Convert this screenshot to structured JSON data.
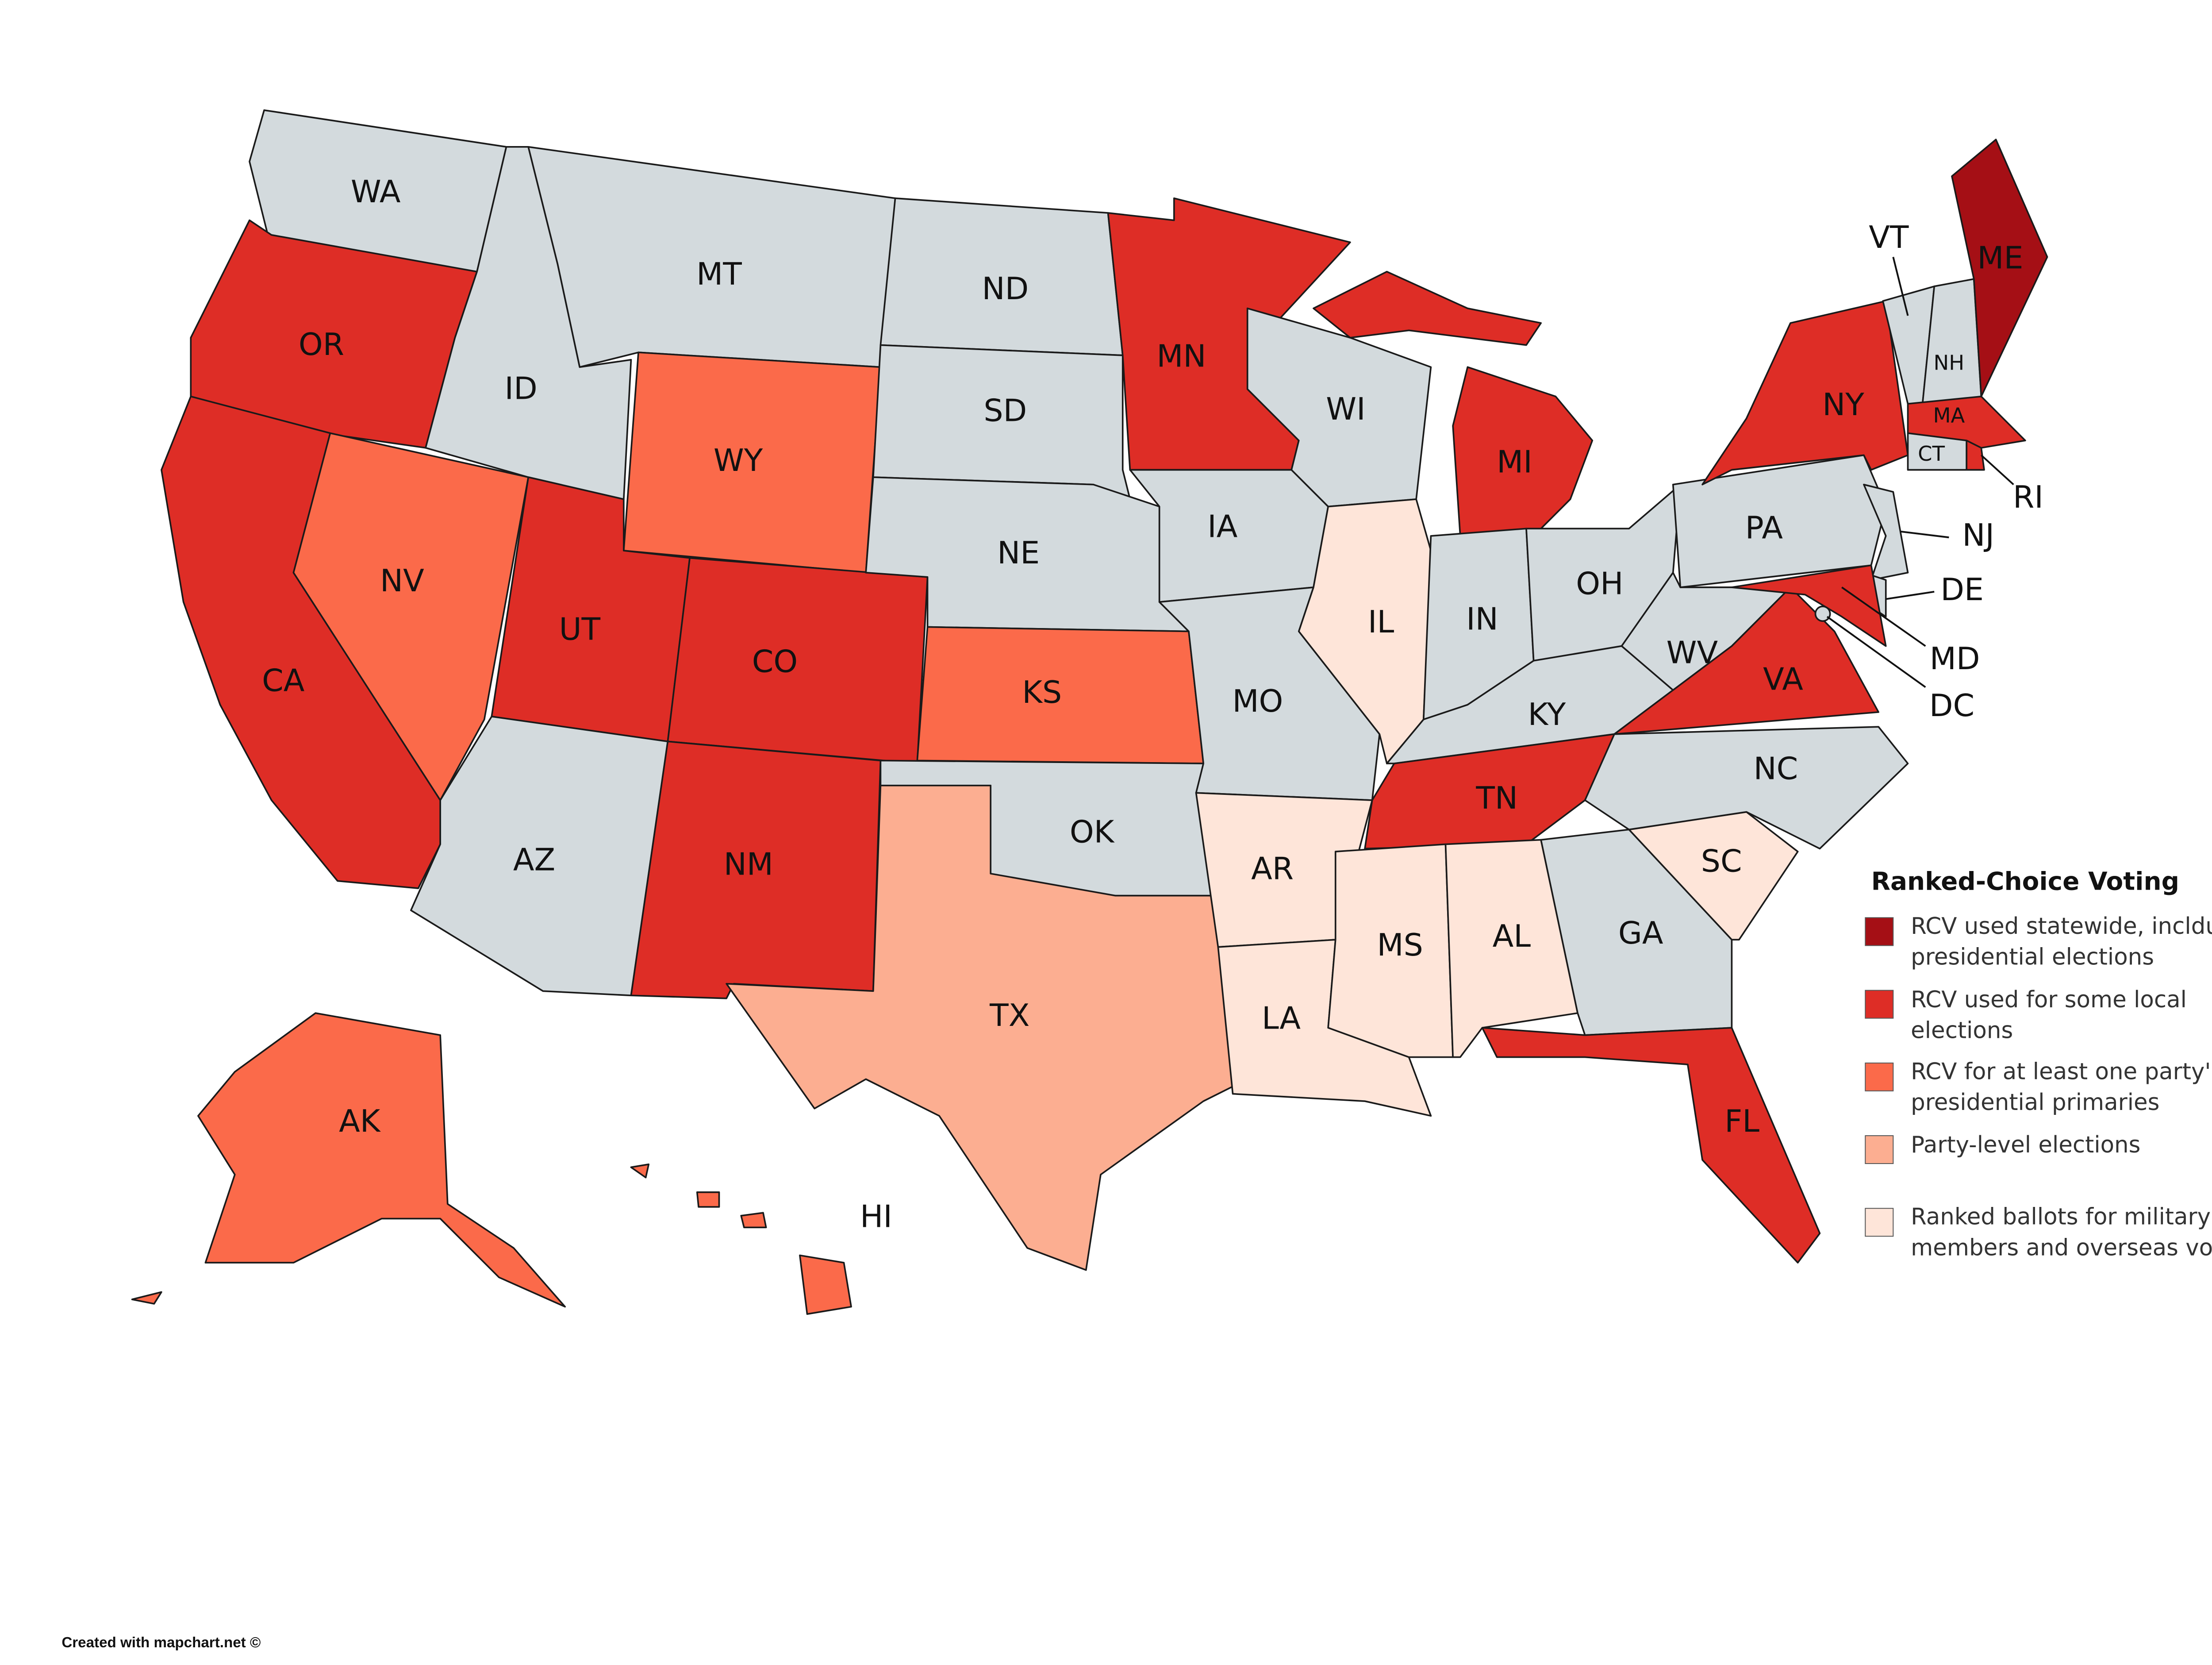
{
  "legend": {
    "title": "Ranked-Choice Voting",
    "items": [
      {
        "color": "#a50f15",
        "label": "RCV used statewide, inclduing presidential elections"
      },
      {
        "color": "#de2d26",
        "label": "RCV used for some local elections"
      },
      {
        "color": "#fb6a4a",
        "label": "RCV for at least one party's presidential primaries"
      },
      {
        "color": "#fcae91",
        "label": "Party-level elections"
      },
      {
        "color": "#fee5d9",
        "label": "Ranked ballots for military members and overseas voters"
      }
    ]
  },
  "states": [
    {
      "label": "WA",
      "color": "#d3dadd"
    },
    {
      "label": "OR",
      "color": "#de2d26"
    },
    {
      "label": "CA",
      "color": "#de2d26"
    },
    {
      "label": "NV",
      "color": "#fb6a4a"
    },
    {
      "label": "ID",
      "color": "#d3dadd"
    },
    {
      "label": "MT",
      "color": "#d3dadd"
    },
    {
      "label": "WY",
      "color": "#fb6a4a"
    },
    {
      "label": "UT",
      "color": "#de2d26"
    },
    {
      "label": "CO",
      "color": "#de2d26"
    },
    {
      "label": "AZ",
      "color": "#d3dadd"
    },
    {
      "label": "NM",
      "color": "#de2d26"
    },
    {
      "label": "ND",
      "color": "#d3dadd"
    },
    {
      "label": "SD",
      "color": "#d3dadd"
    },
    {
      "label": "NE",
      "color": "#d3dadd"
    },
    {
      "label": "KS",
      "color": "#fb6a4a"
    },
    {
      "label": "OK",
      "color": "#d3dadd"
    },
    {
      "label": "TX",
      "color": "#fcae91"
    },
    {
      "label": "MN",
      "color": "#de2d26"
    },
    {
      "label": "IA",
      "color": "#d3dadd"
    },
    {
      "label": "MO",
      "color": "#d3dadd"
    },
    {
      "label": "AR",
      "color": "#fee5d9"
    },
    {
      "label": "LA",
      "color": "#fee5d9"
    },
    {
      "label": "WI",
      "color": "#d3dadd"
    },
    {
      "label": "IL",
      "color": "#fee5d9"
    },
    {
      "label": "MI",
      "color": "#de2d26"
    },
    {
      "label": "IN",
      "color": "#d3dadd"
    },
    {
      "label": "OH",
      "color": "#d3dadd"
    },
    {
      "label": "KY",
      "color": "#d3dadd"
    },
    {
      "label": "TN",
      "color": "#de2d26"
    },
    {
      "label": "MS",
      "color": "#fee5d9"
    },
    {
      "label": "AL",
      "color": "#fee5d9"
    },
    {
      "label": "GA",
      "color": "#d3dadd"
    },
    {
      "label": "FL",
      "color": "#de2d26"
    },
    {
      "label": "SC",
      "color": "#fee5d9"
    },
    {
      "label": "NC",
      "color": "#d3dadd"
    },
    {
      "label": "VA",
      "color": "#de2d26"
    },
    {
      "label": "WV",
      "color": "#d3dadd"
    },
    {
      "label": "PA",
      "color": "#d3dadd"
    },
    {
      "label": "NY",
      "color": "#de2d26"
    },
    {
      "label": "NJ",
      "color": "#d3dadd"
    },
    {
      "label": "DE",
      "color": "#d3dadd"
    },
    {
      "label": "MD",
      "color": "#de2d26"
    },
    {
      "label": "DC",
      "color": "#d3dadd"
    },
    {
      "label": "VT",
      "color": "#d3dadd"
    },
    {
      "label": "NH",
      "color": "#d3dadd"
    },
    {
      "label": "ME",
      "color": "#a50f15"
    },
    {
      "label": "MA",
      "color": "#de2d26"
    },
    {
      "label": "CT",
      "color": "#d3dadd"
    },
    {
      "label": "RI",
      "color": "#de2d26"
    },
    {
      "label": "AK",
      "color": "#fb6a4a"
    },
    {
      "label": "HI",
      "color": "#fb6a4a"
    }
  ],
  "credit": "Created with mapchart.net ©"
}
